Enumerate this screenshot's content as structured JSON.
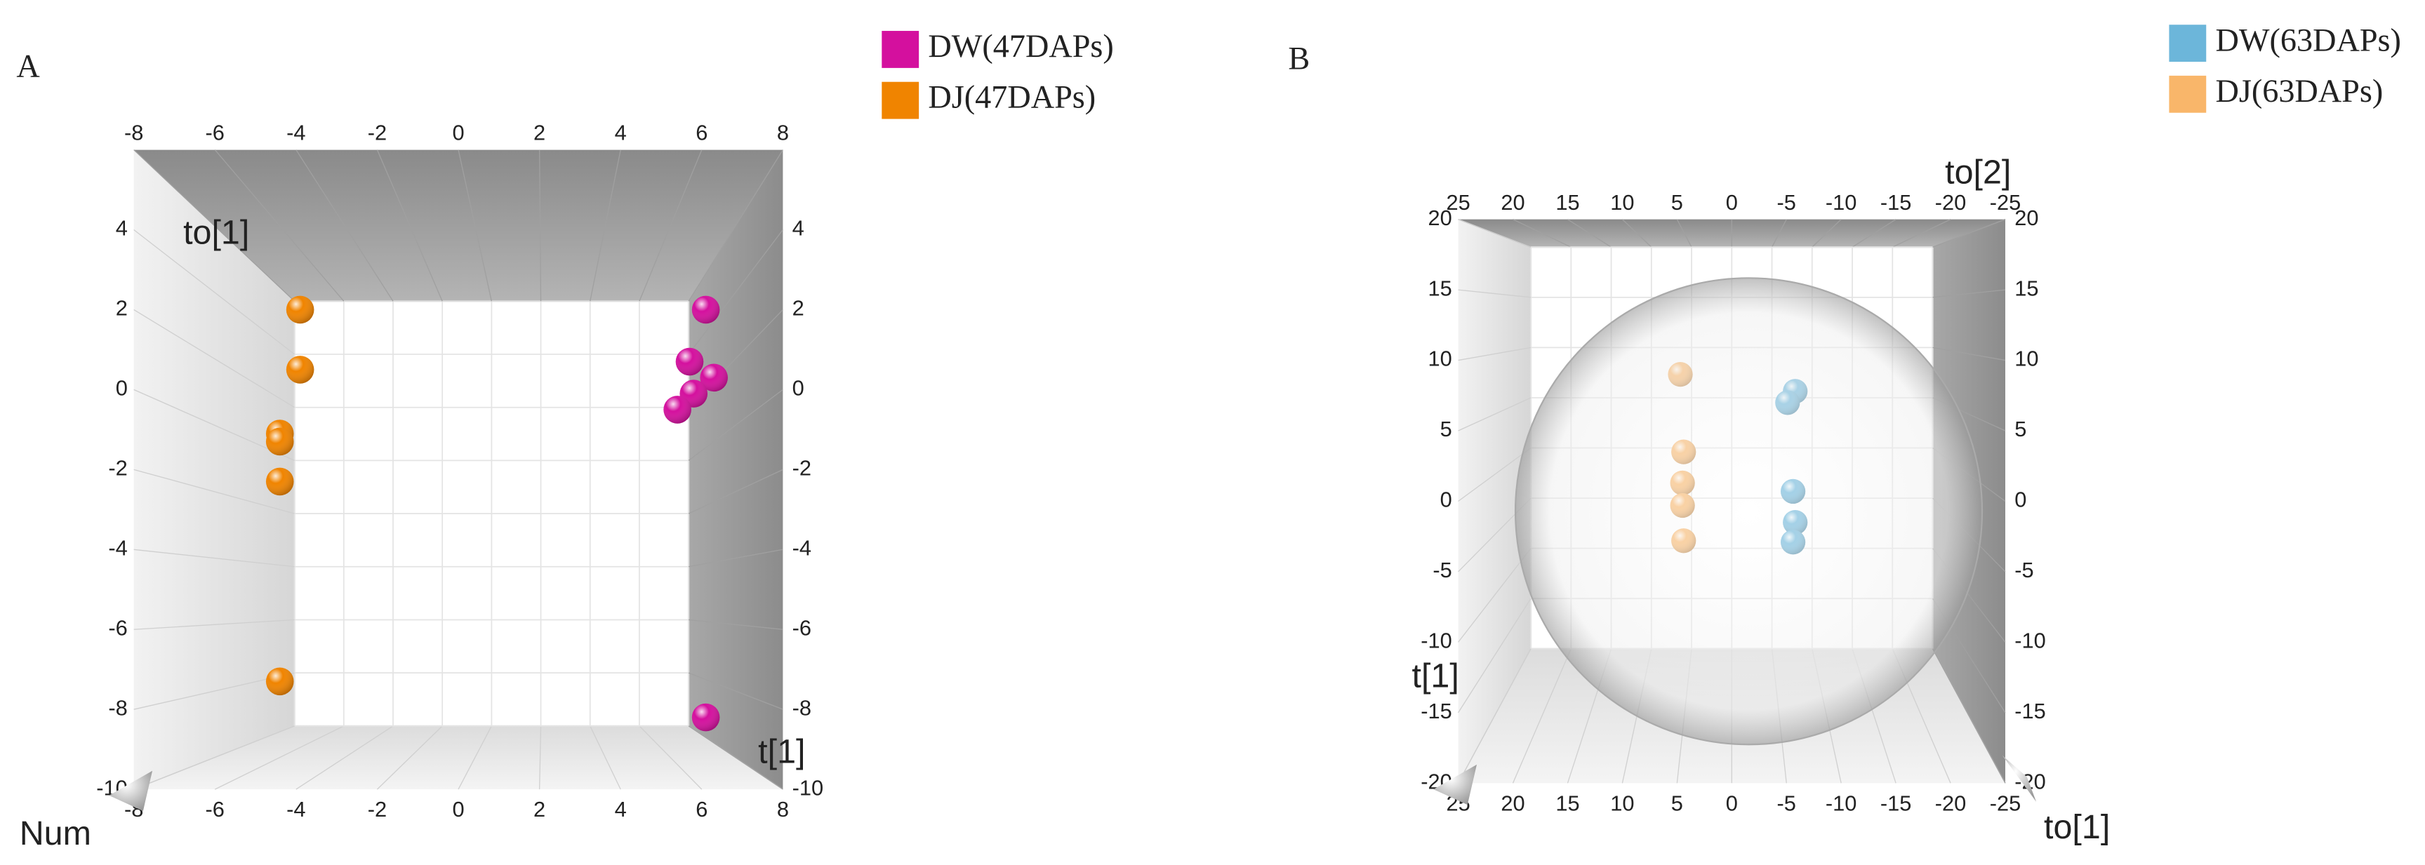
{
  "chart_data": [
    {
      "type": "scatter",
      "panel_label": "A",
      "axis_labels": [
        "to[1]",
        "t[1]",
        "Num"
      ],
      "xlim": [
        -8,
        8
      ],
      "xticks": [
        -8,
        -6,
        -4,
        -2,
        0,
        2,
        4,
        6,
        8
      ],
      "ylim": [
        -10,
        6
      ],
      "yticks": [
        -10,
        -8,
        -6,
        -4,
        -2,
        0,
        2,
        4
      ],
      "series": [
        {
          "name": "DW(47DAPs)",
          "color": "#d4109e",
          "x": [
            6.1,
            5.7,
            6.3,
            5.8,
            5.4,
            6.1
          ],
          "values": [
            2.0,
            0.7,
            0.3,
            -0.1,
            -0.5,
            -8.2
          ]
        },
        {
          "name": "DJ(47DAPs)",
          "color": "#f08400",
          "x": [
            -3.9,
            -3.9,
            -4.4,
            -4.4,
            -4.4,
            -4.4
          ],
          "values": [
            2.0,
            0.5,
            -1.1,
            -1.3,
            -2.3,
            -7.3
          ]
        }
      ]
    },
    {
      "type": "scatter",
      "panel_label": "B",
      "axis_labels": [
        "to[2]",
        "t[1]",
        "to[1]"
      ],
      "xlim": [
        25,
        -25
      ],
      "xticks": [
        25,
        20,
        15,
        10,
        5,
        0,
        -5,
        -10,
        -15,
        -20,
        -25
      ],
      "ylim": [
        -20,
        20
      ],
      "yticks": [
        -20,
        -15,
        -10,
        -5,
        0,
        5,
        10,
        15,
        20
      ],
      "series": [
        {
          "name": "DW(63DAPs)",
          "color": "#6cb6da",
          "x": [
            -5.8,
            -5.1,
            -5.6,
            -5.8,
            -5.6
          ],
          "values": [
            7.8,
            7.0,
            0.7,
            -1.5,
            -2.9
          ]
        },
        {
          "name": "DJ(63DAPs)",
          "color": "#f9b66a",
          "x": [
            4.7,
            4.4,
            4.5,
            4.5,
            4.4
          ],
          "values": [
            9.0,
            3.5,
            1.3,
            -0.3,
            -2.8
          ]
        }
      ]
    }
  ]
}
